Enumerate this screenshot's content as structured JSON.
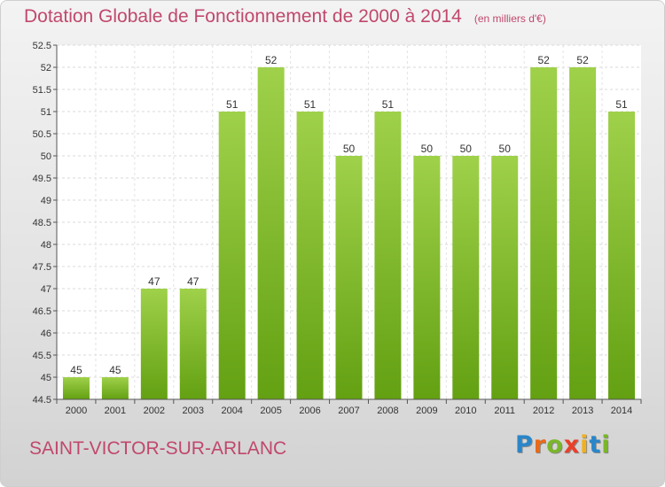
{
  "chart_data": {
    "type": "bar",
    "title": "Dotation Globale de Fonctionnement de 2000 à 2014",
    "unit_label": "(en milliers d'€)",
    "categories": [
      "2000",
      "2001",
      "2002",
      "2003",
      "2004",
      "2005",
      "2006",
      "2007",
      "2008",
      "2009",
      "2010",
      "2011",
      "2012",
      "2013",
      "2014"
    ],
    "values": [
      45,
      45,
      47,
      47,
      51,
      52,
      51,
      50,
      51,
      50,
      50,
      50,
      52,
      52,
      51
    ],
    "ylim": [
      44.5,
      52.5
    ],
    "yticks": [
      "44.5",
      "45",
      "45.5",
      "46",
      "46.5",
      "47",
      "47.5",
      "48",
      "48.5",
      "49",
      "49.5",
      "50",
      "50.5",
      "51",
      "51.5",
      "52",
      "52.5"
    ],
    "grid": true,
    "bar_color": "#7fbf2a",
    "xlabel": "",
    "ylabel": ""
  },
  "footer": {
    "commune": "SAINT-VICTOR-SUR-ARLANC",
    "logo_letters": [
      {
        "char": "P",
        "color": "#2a86c8"
      },
      {
        "char": "r",
        "color": "#e86a1a"
      },
      {
        "char": "o",
        "color": "#7ab62b"
      },
      {
        "char": "x",
        "color": "#e8402a"
      },
      {
        "char": "i",
        "color": "#f2b01e"
      },
      {
        "char": "t",
        "color": "#2a86c8"
      },
      {
        "char": "i",
        "color": "#7ab62b"
      }
    ]
  }
}
